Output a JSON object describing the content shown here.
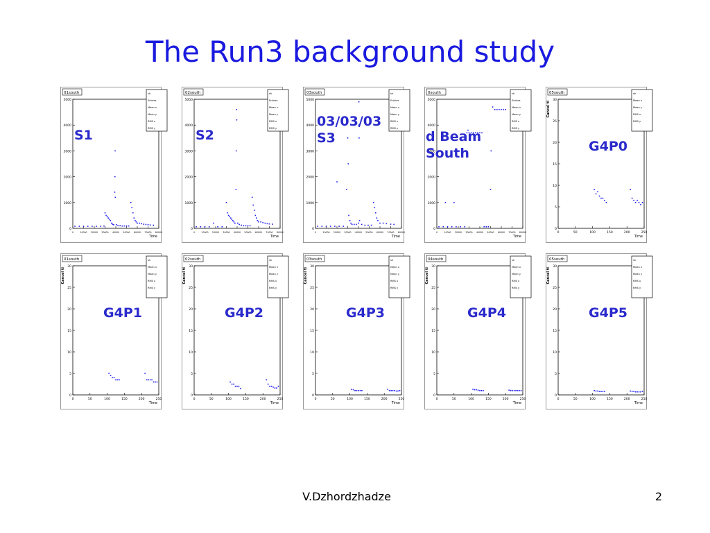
{
  "slide": {
    "title": "The Run3 background study",
    "author": "V.Dzhordzhadze",
    "page_number": "2"
  },
  "colors": {
    "title": "#1a1adf",
    "marker": "#1c1cf0",
    "frame": "#000000"
  },
  "chart_data": [
    {
      "type": "scatter",
      "tag": "01south",
      "label": "S1",
      "xlabel": "Time",
      "ylabel": "",
      "ylim": [
        0,
        5000
      ],
      "yticks": [
        "0",
        "1000",
        "2000",
        "3000",
        "4000",
        "5000"
      ],
      "xmax": 80000,
      "xticks": [
        "0",
        "10000",
        "20000",
        "30000",
        "40000",
        "50000",
        "60000",
        "70000",
        "80000"
      ],
      "legend": [
        "sh",
        "Entries",
        "Mean x",
        "Mean y",
        "RMS x",
        "RMS y"
      ],
      "points": [
        [
          2000,
          80
        ],
        [
          6000,
          80
        ],
        [
          10000,
          80
        ],
        [
          14000,
          80
        ],
        [
          18000,
          80
        ],
        [
          22000,
          80
        ],
        [
          26000,
          80
        ],
        [
          29000,
          90
        ],
        [
          30000,
          600
        ],
        [
          31000,
          500
        ],
        [
          32000,
          450
        ],
        [
          33000,
          400
        ],
        [
          34000,
          350
        ],
        [
          35000,
          300
        ],
        [
          36000,
          200
        ],
        [
          37000,
          160
        ],
        [
          38000,
          140
        ],
        [
          39000,
          1400
        ],
        [
          39200,
          2000
        ],
        [
          39400,
          3000
        ],
        [
          39600,
          1200
        ],
        [
          40500,
          140
        ],
        [
          42000,
          110
        ],
        [
          44000,
          100
        ],
        [
          46000,
          90
        ],
        [
          48000,
          90
        ],
        [
          50000,
          90
        ],
        [
          52000,
          90
        ],
        [
          54000,
          1000
        ],
        [
          55000,
          800
        ],
        [
          56000,
          600
        ],
        [
          57000,
          400
        ],
        [
          58000,
          300
        ],
        [
          59000,
          250
        ],
        [
          60000,
          200
        ],
        [
          62000,
          200
        ],
        [
          64000,
          180
        ],
        [
          66000,
          160
        ],
        [
          68000,
          150
        ],
        [
          70000,
          140
        ],
        [
          72000,
          130
        ],
        [
          75000,
          120
        ]
      ]
    },
    {
      "type": "scatter",
      "tag": "02south",
      "label": "S2",
      "xlabel": "Time",
      "ylabel": "",
      "ylim": [
        0,
        5000
      ],
      "yticks": [
        "0",
        "1000",
        "2000",
        "3000",
        "4000",
        "5000"
      ],
      "xmax": 80000,
      "xticks": [
        "0",
        "10000",
        "20000",
        "30000",
        "40000",
        "50000",
        "60000",
        "70000",
        "80000"
      ],
      "legend": [
        "sh",
        "Entries",
        "Mean x",
        "Mean y",
        "RMS x",
        "RMS y"
      ],
      "points": [
        [
          2000,
          60
        ],
        [
          6000,
          60
        ],
        [
          10000,
          60
        ],
        [
          14000,
          60
        ],
        [
          18000,
          200
        ],
        [
          22000,
          60
        ],
        [
          26000,
          60
        ],
        [
          30000,
          1000
        ],
        [
          31000,
          600
        ],
        [
          32000,
          500
        ],
        [
          33000,
          450
        ],
        [
          34000,
          400
        ],
        [
          35000,
          350
        ],
        [
          36000,
          300
        ],
        [
          37000,
          250
        ],
        [
          38000,
          200
        ],
        [
          39000,
          1500
        ],
        [
          39200,
          3000
        ],
        [
          39400,
          4600
        ],
        [
          39600,
          4200
        ],
        [
          40500,
          200
        ],
        [
          42000,
          150
        ],
        [
          44000,
          120
        ],
        [
          46000,
          100
        ],
        [
          48000,
          100
        ],
        [
          50000,
          100
        ],
        [
          52000,
          100
        ],
        [
          54000,
          1200
        ],
        [
          55000,
          900
        ],
        [
          56000,
          700
        ],
        [
          57000,
          500
        ],
        [
          58000,
          400
        ],
        [
          59000,
          300
        ],
        [
          60000,
          250
        ],
        [
          62000,
          250
        ],
        [
          64000,
          220
        ],
        [
          66000,
          200
        ],
        [
          68000,
          180
        ],
        [
          70000,
          170
        ],
        [
          73000,
          160
        ]
      ]
    },
    {
      "type": "scatter",
      "tag": "03south",
      "label": "03/03/03\nS3",
      "xlabel": "Time",
      "ylabel": "",
      "ylim": [
        0,
        5000
      ],
      "yticks": [
        "0",
        "1000",
        "2000",
        "3000",
        "4000",
        "5000"
      ],
      "xmax": 80000,
      "xticks": [
        "0",
        "10000",
        "20000",
        "30000",
        "40000",
        "50000",
        "60000",
        "70000",
        "80000"
      ],
      "legend": [
        "sh",
        "Entries",
        "Mean x",
        "Mean y",
        "RMS x",
        "RMS y"
      ],
      "points": [
        [
          2000,
          80
        ],
        [
          6000,
          80
        ],
        [
          10000,
          80
        ],
        [
          14000,
          80
        ],
        [
          18000,
          80
        ],
        [
          20000,
          1800
        ],
        [
          22000,
          80
        ],
        [
          26000,
          80
        ],
        [
          29000,
          1500
        ],
        [
          30000,
          3500
        ],
        [
          30500,
          2500
        ],
        [
          31000,
          500
        ],
        [
          32000,
          300
        ],
        [
          33000,
          200
        ],
        [
          34000,
          150
        ],
        [
          36000,
          150
        ],
        [
          38000,
          150
        ],
        [
          40000,
          200
        ],
        [
          40200,
          4000
        ],
        [
          40400,
          4900
        ],
        [
          40600,
          3500
        ],
        [
          41000,
          300
        ],
        [
          43000,
          150
        ],
        [
          46000,
          120
        ],
        [
          49000,
          120
        ],
        [
          52000,
          120
        ],
        [
          54000,
          1000
        ],
        [
          55000,
          800
        ],
        [
          56000,
          600
        ],
        [
          57000,
          400
        ],
        [
          58000,
          300
        ],
        [
          60000,
          200
        ],
        [
          63000,
          200
        ],
        [
          66000,
          180
        ],
        [
          70000,
          160
        ],
        [
          73000,
          150
        ]
      ]
    },
    {
      "type": "scatter",
      "tag": "0south",
      "label": "d Beam\nSouth",
      "xlabel": "Time",
      "ylabel": "",
      "ylim": [
        0,
        5000
      ],
      "yticks": [
        "0",
        "1000",
        "2000",
        "3000",
        "4000",
        "5000"
      ],
      "xmax": 80000,
      "xticks": [
        "0",
        "10000",
        "20000",
        "30000",
        "40000",
        "50000",
        "60000",
        "70000",
        "80000"
      ],
      "legend": [
        "sh",
        "Entries",
        "Mean x",
        "Mean y",
        "RMS x",
        "RMS y"
      ],
      "points": [
        [
          2000,
          60
        ],
        [
          6000,
          60
        ],
        [
          8000,
          1000
        ],
        [
          10000,
          60
        ],
        [
          14000,
          60
        ],
        [
          16000,
          1000
        ],
        [
          18000,
          60
        ],
        [
          22000,
          60
        ],
        [
          26000,
          60
        ],
        [
          28000,
          3700
        ],
        [
          29000,
          3800
        ],
        [
          30000,
          3700
        ],
        [
          32000,
          3700
        ],
        [
          34000,
          3700
        ],
        [
          36000,
          3700
        ],
        [
          38000,
          3700
        ],
        [
          40000,
          3700
        ],
        [
          42000,
          3700
        ],
        [
          44000,
          60
        ],
        [
          46000,
          60
        ],
        [
          48000,
          60
        ],
        [
          50000,
          1500
        ],
        [
          50500,
          3000
        ],
        [
          52000,
          4700
        ],
        [
          54000,
          4600
        ],
        [
          56000,
          4600
        ],
        [
          58000,
          4600
        ],
        [
          60000,
          4600
        ],
        [
          62000,
          4600
        ],
        [
          64000,
          4600
        ]
      ]
    },
    {
      "type": "scatter",
      "tag": "05south",
      "label": "G4P0",
      "xlabel": "Time",
      "ylabel": "Cancel ti",
      "ylim": [
        0,
        30
      ],
      "yticks": [
        "0",
        "5",
        "10",
        "15",
        "20",
        "25",
        "30"
      ],
      "xmax": 250,
      "xticks": [
        "0",
        "50",
        "100",
        "150",
        "200",
        "250"
      ],
      "legend": [
        "sh",
        "Mean x",
        "Mean y",
        "RMS x",
        "RMS y"
      ],
      "points": [
        [
          105,
          9
        ],
        [
          110,
          8
        ],
        [
          115,
          8.5
        ],
        [
          120,
          7.5
        ],
        [
          125,
          7
        ],
        [
          130,
          7
        ],
        [
          135,
          6.5
        ],
        [
          140,
          6
        ],
        [
          210,
          9
        ],
        [
          215,
          7
        ],
        [
          220,
          6.5
        ],
        [
          225,
          6
        ],
        [
          230,
          6.5
        ],
        [
          235,
          6
        ],
        [
          240,
          5.5
        ],
        [
          245,
          6
        ]
      ]
    },
    {
      "type": "scatter",
      "tag": "01south",
      "label": "G4P1",
      "xlabel": "Time",
      "ylabel": "Cancel ti",
      "ylim": [
        0,
        30
      ],
      "yticks": [
        "0",
        "5",
        "10",
        "15",
        "20",
        "25",
        "30"
      ],
      "xmax": 250,
      "xticks": [
        "0",
        "50",
        "100",
        "150",
        "200",
        "250"
      ],
      "legend": [
        "sh",
        "Mean x",
        "Mean y",
        "RMS x",
        "RMS y"
      ],
      "points": [
        [
          105,
          5
        ],
        [
          110,
          4.5
        ],
        [
          115,
          4
        ],
        [
          120,
          4
        ],
        [
          125,
          3.5
        ],
        [
          130,
          3.5
        ],
        [
          135,
          3.5
        ],
        [
          210,
          5
        ],
        [
          215,
          3.5
        ],
        [
          220,
          3.5
        ],
        [
          225,
          3.5
        ],
        [
          230,
          3.5
        ],
        [
          235,
          3
        ],
        [
          240,
          3
        ],
        [
          245,
          3
        ]
      ]
    },
    {
      "type": "scatter",
      "tag": "02south",
      "label": "G4P2",
      "xlabel": "Time",
      "ylabel": "Cancel ti",
      "ylim": [
        0,
        30
      ],
      "yticks": [
        "0",
        "5",
        "10",
        "15",
        "20",
        "25",
        "30"
      ],
      "xmax": 250,
      "xticks": [
        "0",
        "50",
        "100",
        "150",
        "200",
        "250"
      ],
      "legend": [
        "sh",
        "Mean x",
        "Mean y",
        "RMS x",
        "RMS y"
      ],
      "points": [
        [
          105,
          3
        ],
        [
          110,
          2.5
        ],
        [
          115,
          2.5
        ],
        [
          120,
          2
        ],
        [
          125,
          2
        ],
        [
          130,
          2
        ],
        [
          135,
          1.5
        ],
        [
          210,
          3.5
        ],
        [
          215,
          2.5
        ],
        [
          220,
          2
        ],
        [
          225,
          2
        ],
        [
          230,
          1.8
        ],
        [
          235,
          1.6
        ],
        [
          240,
          1.6
        ],
        [
          245,
          2
        ]
      ]
    },
    {
      "type": "scatter",
      "tag": "03south",
      "label": "G4P3",
      "xlabel": "Time",
      "ylabel": "Cancel ti",
      "ylim": [
        0,
        30
      ],
      "yticks": [
        "0",
        "5",
        "10",
        "15",
        "20",
        "25",
        "30"
      ],
      "xmax": 250,
      "xticks": [
        "0",
        "50",
        "100",
        "150",
        "200",
        "250"
      ],
      "legend": [
        "sh",
        "Mean x",
        "Mean y",
        "RMS x",
        "RMS y"
      ],
      "points": [
        [
          105,
          1.3
        ],
        [
          110,
          1.2
        ],
        [
          115,
          1
        ],
        [
          120,
          1
        ],
        [
          125,
          1
        ],
        [
          130,
          1
        ],
        [
          135,
          1
        ],
        [
          210,
          1.3
        ],
        [
          215,
          1
        ],
        [
          220,
          1
        ],
        [
          225,
          1
        ],
        [
          230,
          1
        ],
        [
          235,
          0.9
        ],
        [
          240,
          0.9
        ],
        [
          245,
          1
        ]
      ]
    },
    {
      "type": "scatter",
      "tag": "04south",
      "label": "G4P4",
      "xlabel": "Time",
      "ylabel": "Cancel ti",
      "ylim": [
        0,
        30
      ],
      "yticks": [
        "0",
        "5",
        "10",
        "15",
        "20",
        "25",
        "30"
      ],
      "xmax": 250,
      "xticks": [
        "0",
        "50",
        "100",
        "150",
        "200",
        "250"
      ],
      "legend": [
        "sh",
        "Mean x",
        "Mean y",
        "RMS x",
        "RMS y"
      ],
      "points": [
        [
          105,
          1.3
        ],
        [
          110,
          1.2
        ],
        [
          115,
          1.2
        ],
        [
          120,
          1.1
        ],
        [
          125,
          1
        ],
        [
          130,
          1
        ],
        [
          135,
          1
        ],
        [
          210,
          1.1
        ],
        [
          215,
          1
        ],
        [
          220,
          1
        ],
        [
          225,
          1
        ],
        [
          230,
          1
        ],
        [
          235,
          1
        ],
        [
          240,
          1
        ],
        [
          245,
          1
        ]
      ]
    },
    {
      "type": "scatter",
      "tag": "05south",
      "label": "G4P5",
      "xlabel": "Time",
      "ylabel": "Cancel ti",
      "ylim": [
        0,
        30
      ],
      "yticks": [
        "0",
        "5",
        "10",
        "15",
        "20",
        "25",
        "30"
      ],
      "xmax": 250,
      "xticks": [
        "0",
        "50",
        "100",
        "150",
        "200",
        "250"
      ],
      "legend": [
        "sh",
        "Mean x",
        "Mean y",
        "RMS x",
        "RMS y"
      ],
      "points": [
        [
          105,
          1
        ],
        [
          110,
          0.9
        ],
        [
          115,
          0.9
        ],
        [
          120,
          0.8
        ],
        [
          125,
          0.8
        ],
        [
          130,
          0.8
        ],
        [
          135,
          0.8
        ],
        [
          210,
          0.9
        ],
        [
          215,
          0.8
        ],
        [
          220,
          0.8
        ],
        [
          225,
          0.7
        ],
        [
          230,
          0.7
        ],
        [
          235,
          0.7
        ],
        [
          240,
          0.7
        ],
        [
          245,
          0.8
        ]
      ]
    }
  ]
}
